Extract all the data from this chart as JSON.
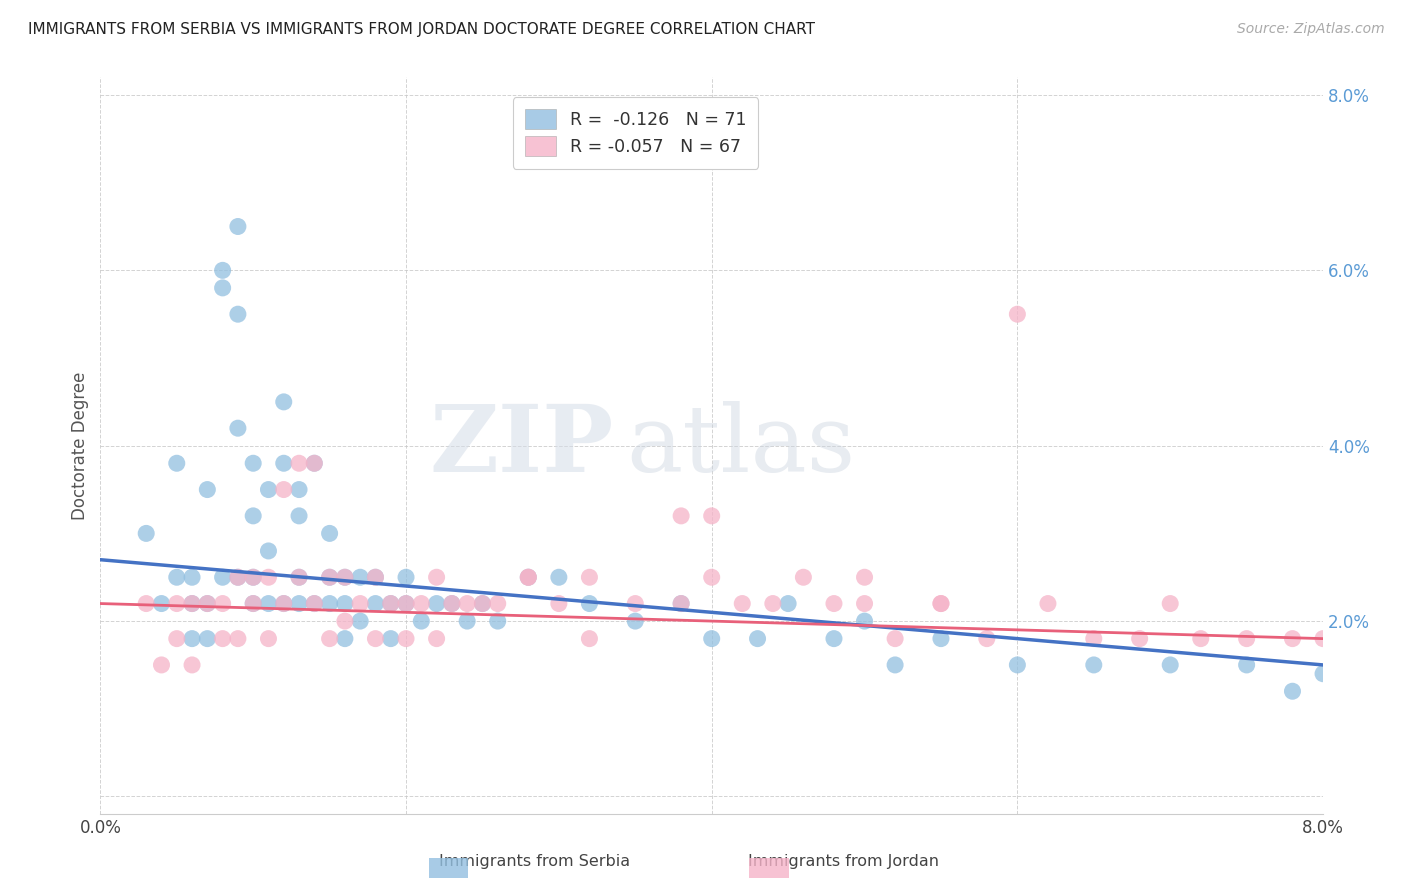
{
  "title": "IMMIGRANTS FROM SERBIA VS IMMIGRANTS FROM JORDAN DOCTORATE DEGREE CORRELATION CHART",
  "source": "Source: ZipAtlas.com",
  "ylabel": "Doctorate Degree",
  "xlim": [
    0.0,
    0.08
  ],
  "ylim": [
    -0.002,
    0.082
  ],
  "legend_serbia_r": "-0.126",
  "legend_serbia_n": "71",
  "legend_jordan_r": "-0.057",
  "legend_jordan_n": "67",
  "color_serbia": "#92bfe0",
  "color_jordan": "#f5b3c8",
  "color_serbia_line": "#4472c4",
  "color_jordan_line": "#e8607a",
  "color_ytick": "#5b9bd5",
  "watermark_zip": "ZIP",
  "watermark_atlas": "atlas",
  "serbia_x": [
    0.003,
    0.004,
    0.005,
    0.005,
    0.006,
    0.006,
    0.006,
    0.007,
    0.007,
    0.007,
    0.008,
    0.008,
    0.008,
    0.009,
    0.009,
    0.009,
    0.009,
    0.01,
    0.01,
    0.01,
    0.01,
    0.011,
    0.011,
    0.011,
    0.012,
    0.012,
    0.012,
    0.013,
    0.013,
    0.013,
    0.013,
    0.014,
    0.014,
    0.015,
    0.015,
    0.015,
    0.016,
    0.016,
    0.016,
    0.017,
    0.017,
    0.018,
    0.018,
    0.019,
    0.019,
    0.02,
    0.02,
    0.021,
    0.022,
    0.023,
    0.024,
    0.025,
    0.026,
    0.028,
    0.03,
    0.032,
    0.035,
    0.038,
    0.04,
    0.043,
    0.045,
    0.048,
    0.05,
    0.052,
    0.055,
    0.06,
    0.065,
    0.07,
    0.075,
    0.078,
    0.08
  ],
  "serbia_y": [
    0.03,
    0.022,
    0.038,
    0.025,
    0.025,
    0.022,
    0.018,
    0.035,
    0.022,
    0.018,
    0.06,
    0.058,
    0.025,
    0.065,
    0.055,
    0.042,
    0.025,
    0.038,
    0.032,
    0.025,
    0.022,
    0.035,
    0.028,
    0.022,
    0.045,
    0.038,
    0.022,
    0.035,
    0.032,
    0.025,
    0.022,
    0.038,
    0.022,
    0.03,
    0.025,
    0.022,
    0.025,
    0.022,
    0.018,
    0.025,
    0.02,
    0.025,
    0.022,
    0.022,
    0.018,
    0.025,
    0.022,
    0.02,
    0.022,
    0.022,
    0.02,
    0.022,
    0.02,
    0.025,
    0.025,
    0.022,
    0.02,
    0.022,
    0.018,
    0.018,
    0.022,
    0.018,
    0.02,
    0.015,
    0.018,
    0.015,
    0.015,
    0.015,
    0.015,
    0.012,
    0.014
  ],
  "jordan_x": [
    0.003,
    0.004,
    0.005,
    0.005,
    0.006,
    0.006,
    0.007,
    0.008,
    0.008,
    0.009,
    0.009,
    0.01,
    0.01,
    0.011,
    0.011,
    0.012,
    0.012,
    0.013,
    0.013,
    0.014,
    0.014,
    0.015,
    0.015,
    0.016,
    0.016,
    0.017,
    0.018,
    0.018,
    0.019,
    0.02,
    0.02,
    0.021,
    0.022,
    0.022,
    0.023,
    0.024,
    0.025,
    0.026,
    0.028,
    0.03,
    0.032,
    0.035,
    0.038,
    0.04,
    0.042,
    0.044,
    0.046,
    0.048,
    0.05,
    0.052,
    0.055,
    0.058,
    0.06,
    0.062,
    0.065,
    0.068,
    0.07,
    0.072,
    0.075,
    0.078,
    0.08,
    0.038,
    0.04,
    0.028,
    0.032,
    0.05,
    0.055
  ],
  "jordan_y": [
    0.022,
    0.015,
    0.022,
    0.018,
    0.022,
    0.015,
    0.022,
    0.022,
    0.018,
    0.025,
    0.018,
    0.025,
    0.022,
    0.025,
    0.018,
    0.035,
    0.022,
    0.038,
    0.025,
    0.038,
    0.022,
    0.025,
    0.018,
    0.025,
    0.02,
    0.022,
    0.025,
    0.018,
    0.022,
    0.022,
    0.018,
    0.022,
    0.025,
    0.018,
    0.022,
    0.022,
    0.022,
    0.022,
    0.025,
    0.022,
    0.025,
    0.022,
    0.022,
    0.032,
    0.022,
    0.022,
    0.025,
    0.022,
    0.022,
    0.018,
    0.022,
    0.018,
    0.055,
    0.022,
    0.018,
    0.018,
    0.022,
    0.018,
    0.018,
    0.018,
    0.018,
    0.032,
    0.025,
    0.025,
    0.018,
    0.025,
    0.022
  ]
}
